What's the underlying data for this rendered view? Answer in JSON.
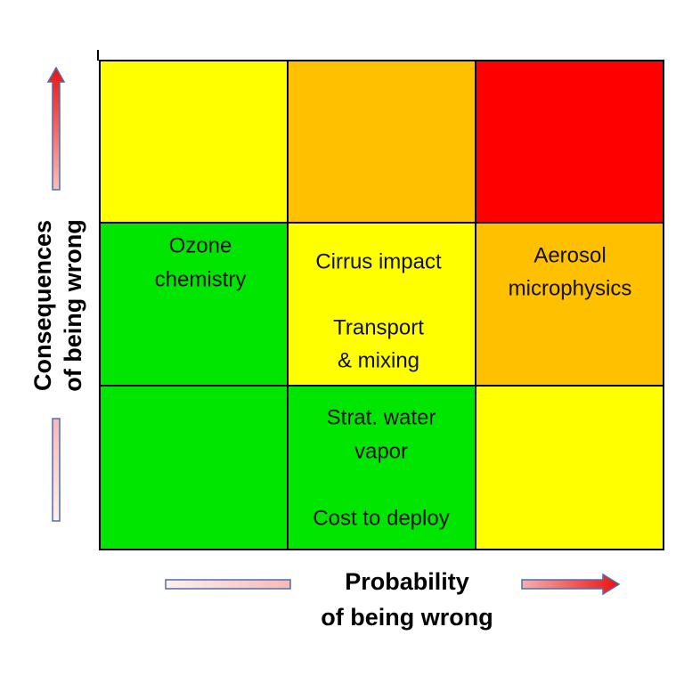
{
  "x_axis_label": [
    "Probability",
    "of being wrong"
  ],
  "y_axis_label": [
    "Consequences",
    "of being wrong"
  ],
  "matrix": {
    "rows": [
      [
        {
          "color": "#ffff00",
          "lines": []
        },
        {
          "color": "#ffc000",
          "lines": []
        },
        {
          "color": "#ff0000",
          "lines": []
        }
      ],
      [
        {
          "color": "#00e600",
          "lines": [
            "Ozone",
            "chemistry"
          ]
        },
        {
          "color": "#ffff00",
          "lines": [
            "Cirrus impact",
            "Transport",
            "& mixing"
          ]
        },
        {
          "color": "#ffc000",
          "lines": [
            "Aerosol",
            "microphysics"
          ]
        }
      ],
      [
        {
          "color": "#00e600",
          "lines": []
        },
        {
          "color": "#00e600",
          "lines": [
            "Strat. water",
            "vapor",
            "Cost to deploy"
          ]
        },
        {
          "color": "#ffff00",
          "lines": []
        }
      ]
    ]
  }
}
